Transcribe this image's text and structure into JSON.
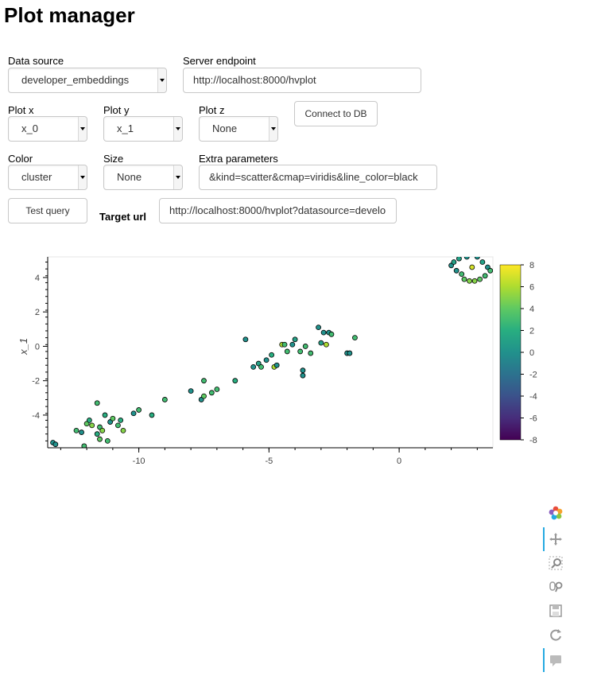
{
  "page": {
    "title": "Plot manager"
  },
  "form": {
    "data_source": {
      "label": "Data source",
      "value": "developer_embeddings"
    },
    "server_endpoint": {
      "label": "Server endpoint",
      "value": "http://localhost:8000/hvplot"
    },
    "plot_x": {
      "label": "Plot x",
      "value": "x_0"
    },
    "plot_y": {
      "label": "Plot y",
      "value": "x_1"
    },
    "plot_z": {
      "label": "Plot z",
      "value": "None"
    },
    "connect_button": "Connect to DB",
    "color": {
      "label": "Color",
      "value": "cluster"
    },
    "size": {
      "label": "Size",
      "value": "None"
    },
    "extra_parameters": {
      "label": "Extra parameters",
      "value": "&kind=scatter&cmap=viridis&line_color=black"
    },
    "test_query_button": "Test query",
    "target_url": {
      "label": "Target url",
      "value": "http://localhost:8000/hvplot?datasource=develo"
    }
  },
  "toolbar": {
    "tools": [
      "bokeh-logo-icon",
      "pan-icon",
      "box-zoom-icon",
      "wheel-zoom-icon",
      "save-icon",
      "reset-icon",
      "hover-icon"
    ]
  },
  "chart_data": {
    "type": "scatter",
    "title": "",
    "xlabel": "",
    "ylabel": "x_1",
    "xlim": [
      -13.5,
      3.6
    ],
    "ylim": [
      -5.9,
      5.2
    ],
    "x_ticks": [
      -10,
      -5,
      0
    ],
    "y_ticks": [
      -4,
      -2,
      0,
      2,
      4
    ],
    "colorbar": {
      "cmap": "viridis",
      "min": -8,
      "max": 8,
      "ticks": [
        8,
        6,
        4,
        2,
        0,
        -2,
        -4,
        -6,
        -8
      ]
    },
    "points": [
      {
        "x": -13.3,
        "y": -5.6,
        "c": 0
      },
      {
        "x": -13.2,
        "y": -5.7,
        "c": 0
      },
      {
        "x": -12.4,
        "y": -4.9,
        "c": 3
      },
      {
        "x": -12.2,
        "y": -5.0,
        "c": 0
      },
      {
        "x": -12.1,
        "y": -5.8,
        "c": 3
      },
      {
        "x": -12.0,
        "y": -4.5,
        "c": 4
      },
      {
        "x": -11.9,
        "y": -4.3,
        "c": 2
      },
      {
        "x": -11.8,
        "y": -4.6,
        "c": 5
      },
      {
        "x": -11.6,
        "y": -5.1,
        "c": 2
      },
      {
        "x": -11.5,
        "y": -4.7,
        "c": 3
      },
      {
        "x": -11.4,
        "y": -4.9,
        "c": 5
      },
      {
        "x": -11.6,
        "y": -3.3,
        "c": 3
      },
      {
        "x": -11.3,
        "y": -4.0,
        "c": 2
      },
      {
        "x": -11.1,
        "y": -4.4,
        "c": 0
      },
      {
        "x": -11.0,
        "y": -4.2,
        "c": 4
      },
      {
        "x": -10.8,
        "y": -4.6,
        "c": 3
      },
      {
        "x": -10.7,
        "y": -4.3,
        "c": 2
      },
      {
        "x": -10.6,
        "y": -4.9,
        "c": 5
      },
      {
        "x": -11.5,
        "y": -5.4,
        "c": 4
      },
      {
        "x": -11.2,
        "y": -5.5,
        "c": 3
      },
      {
        "x": -10.2,
        "y": -3.9,
        "c": 0
      },
      {
        "x": -10.0,
        "y": -3.7,
        "c": 3
      },
      {
        "x": -9.5,
        "y": -4.0,
        "c": 2
      },
      {
        "x": -9.0,
        "y": -3.1,
        "c": 3
      },
      {
        "x": -8.0,
        "y": -2.6,
        "c": 0
      },
      {
        "x": -7.6,
        "y": -3.1,
        "c": 0
      },
      {
        "x": -7.5,
        "y": -2.9,
        "c": 4
      },
      {
        "x": -7.2,
        "y": -2.7,
        "c": 3
      },
      {
        "x": -7.0,
        "y": -2.5,
        "c": 3
      },
      {
        "x": -6.3,
        "y": -2.0,
        "c": 2
      },
      {
        "x": -7.5,
        "y": -2.0,
        "c": 3
      },
      {
        "x": -5.9,
        "y": 0.4,
        "c": 0
      },
      {
        "x": -5.6,
        "y": -1.2,
        "c": 0
      },
      {
        "x": -5.4,
        "y": -1.0,
        "c": 1
      },
      {
        "x": -5.3,
        "y": -1.2,
        "c": 3
      },
      {
        "x": -5.1,
        "y": -0.8,
        "c": 0
      },
      {
        "x": -4.9,
        "y": -0.5,
        "c": 2
      },
      {
        "x": -4.8,
        "y": -1.2,
        "c": 6
      },
      {
        "x": -4.7,
        "y": -1.1,
        "c": 0
      },
      {
        "x": -4.5,
        "y": 0.1,
        "c": 6
      },
      {
        "x": -4.4,
        "y": 0.1,
        "c": 3
      },
      {
        "x": -4.3,
        "y": -0.3,
        "c": 3
      },
      {
        "x": -4.1,
        "y": 0.1,
        "c": 0
      },
      {
        "x": -4.0,
        "y": 0.4,
        "c": 1
      },
      {
        "x": -3.8,
        "y": -0.3,
        "c": 3
      },
      {
        "x": -3.7,
        "y": -1.4,
        "c": 0
      },
      {
        "x": -3.7,
        "y": -1.7,
        "c": 0
      },
      {
        "x": -3.6,
        "y": 0.0,
        "c": 3
      },
      {
        "x": -3.4,
        "y": -0.4,
        "c": 3
      },
      {
        "x": -3.1,
        "y": 1.1,
        "c": 0
      },
      {
        "x": -3.0,
        "y": 0.2,
        "c": 1
      },
      {
        "x": -2.9,
        "y": 0.8,
        "c": 0
      },
      {
        "x": -2.8,
        "y": 0.1,
        "c": 6
      },
      {
        "x": -2.7,
        "y": 0.8,
        "c": 0
      },
      {
        "x": -2.6,
        "y": 0.7,
        "c": 3
      },
      {
        "x": -2.0,
        "y": -0.4,
        "c": 0
      },
      {
        "x": -1.9,
        "y": -0.4,
        "c": 0
      },
      {
        "x": -1.7,
        "y": 0.5,
        "c": 3
      },
      {
        "x": 2.0,
        "y": 4.7,
        "c": 0
      },
      {
        "x": 2.1,
        "y": 4.9,
        "c": 1
      },
      {
        "x": 2.2,
        "y": 4.4,
        "c": 0
      },
      {
        "x": 2.3,
        "y": 5.1,
        "c": 1
      },
      {
        "x": 2.4,
        "y": 4.2,
        "c": 3
      },
      {
        "x": 2.5,
        "y": 3.9,
        "c": 4
      },
      {
        "x": 2.6,
        "y": 5.2,
        "c": 0
      },
      {
        "x": 2.7,
        "y": 3.8,
        "c": 5
      },
      {
        "x": 2.8,
        "y": 4.6,
        "c": 7
      },
      {
        "x": 2.9,
        "y": 3.8,
        "c": 5
      },
      {
        "x": 3.0,
        "y": 5.2,
        "c": 0
      },
      {
        "x": 3.1,
        "y": 3.9,
        "c": 4
      },
      {
        "x": 3.2,
        "y": 4.9,
        "c": 1
      },
      {
        "x": 3.3,
        "y": 4.1,
        "c": 3
      },
      {
        "x": 3.4,
        "y": 4.6,
        "c": 0
      },
      {
        "x": 3.5,
        "y": 4.4,
        "c": 3
      }
    ]
  }
}
